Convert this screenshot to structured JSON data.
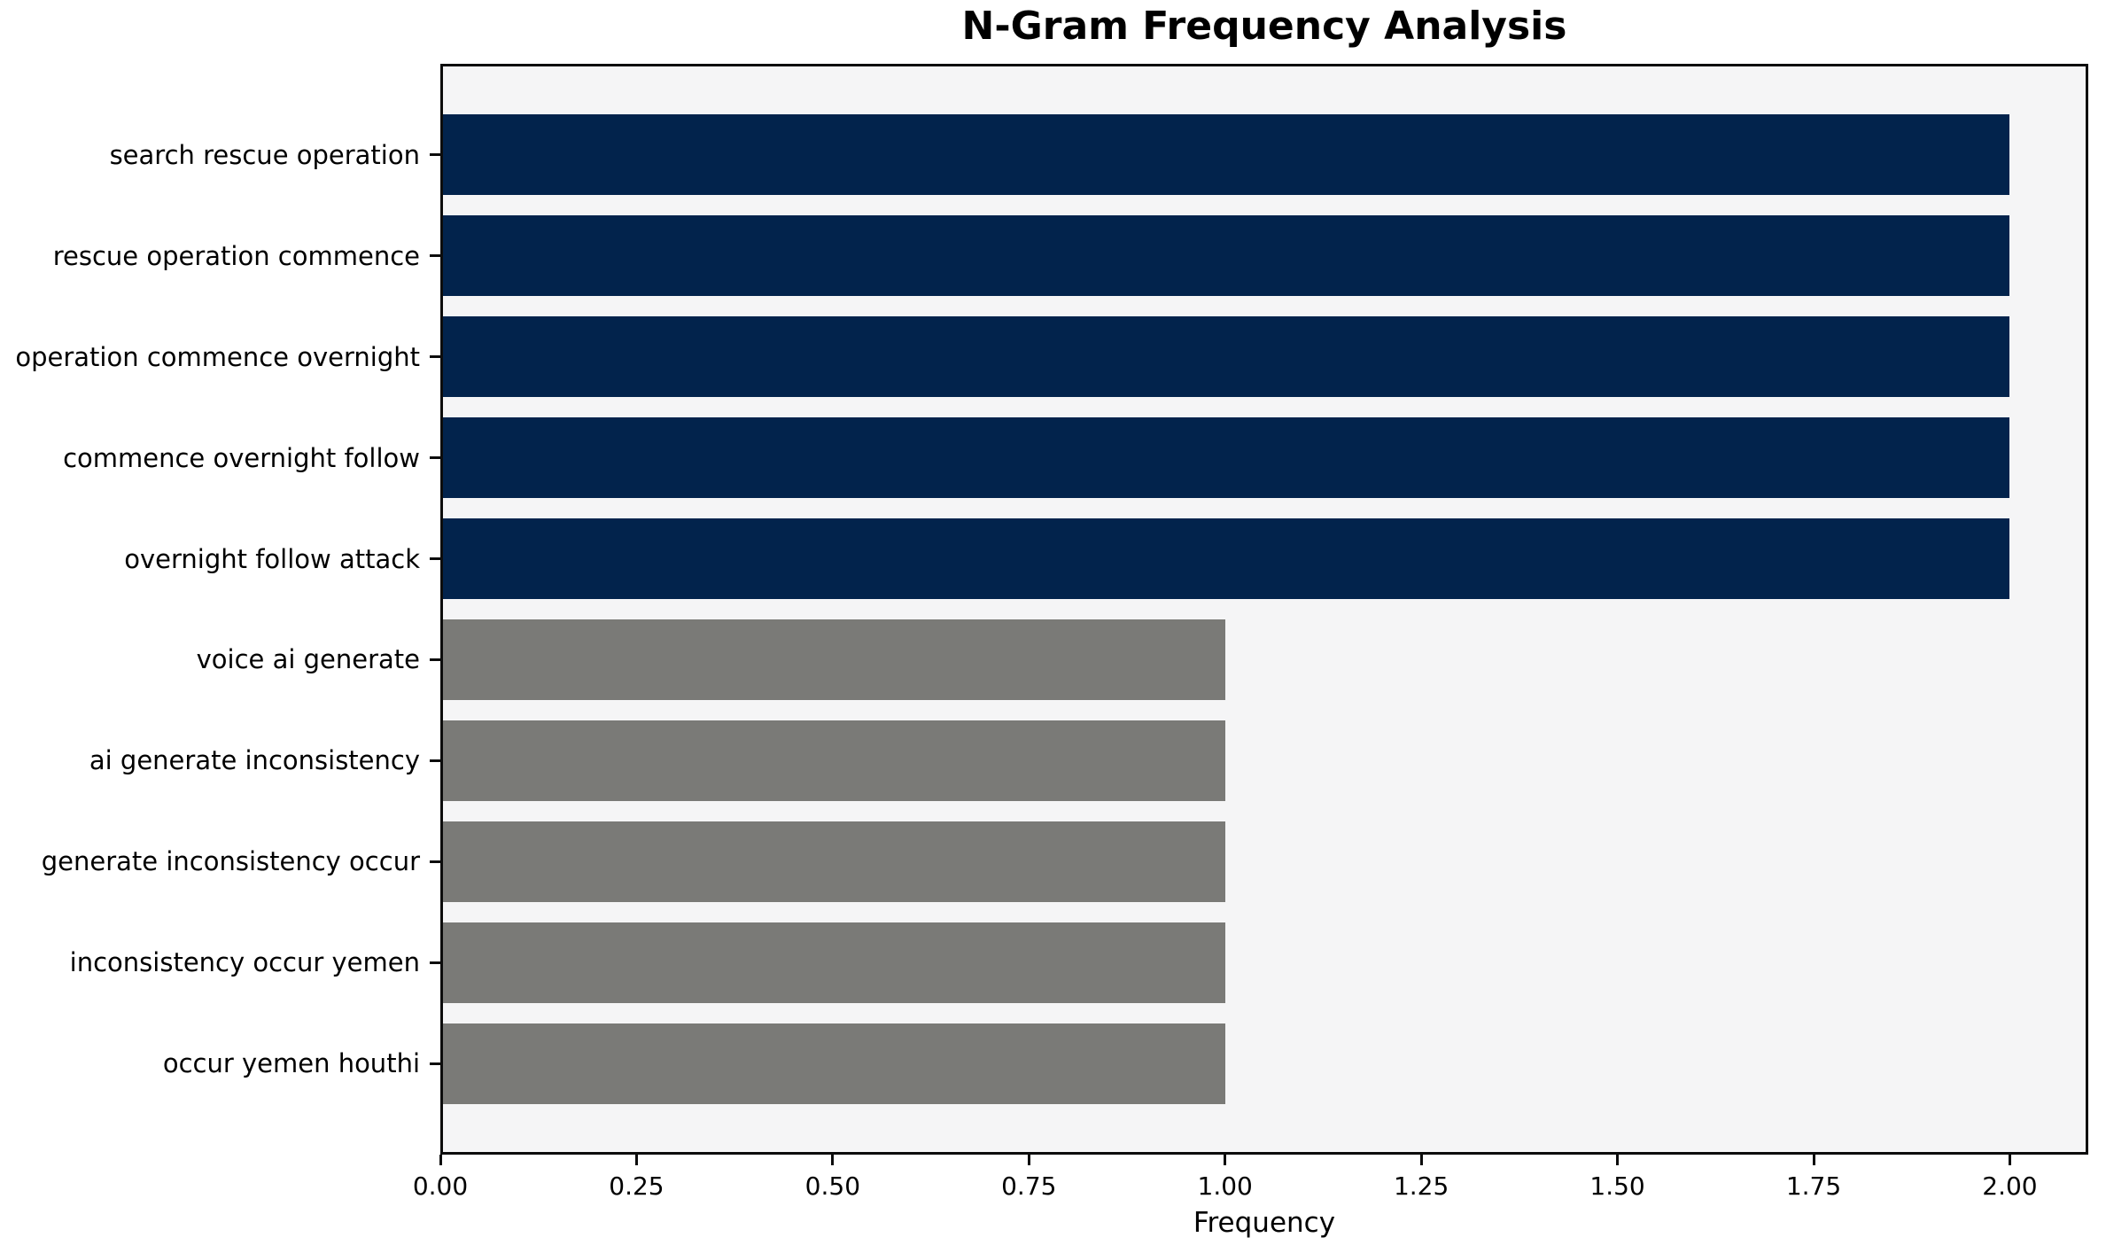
{
  "chart_data": {
    "type": "bar",
    "orientation": "horizontal",
    "title": "N-Gram Frequency Analysis",
    "xlabel": "Frequency",
    "ylabel": "",
    "categories": [
      "search rescue operation",
      "rescue operation commence",
      "operation commence overnight",
      "commence overnight follow",
      "overnight follow attack",
      "voice ai generate",
      "ai generate inconsistency",
      "generate inconsistency occur",
      "inconsistency occur yemen",
      "occur yemen houthi"
    ],
    "values": [
      2,
      2,
      2,
      2,
      2,
      1,
      1,
      1,
      1,
      1
    ],
    "bar_colors": [
      "#02234c",
      "#02234c",
      "#02234c",
      "#02234c",
      "#02234c",
      "#7a7a77",
      "#7a7a77",
      "#7a7a77",
      "#7a7a77",
      "#7a7a77"
    ],
    "xlim": [
      0,
      2.1
    ],
    "x_ticks": [
      {
        "value": 0.0,
        "label": "0.00"
      },
      {
        "value": 0.25,
        "label": "0.25"
      },
      {
        "value": 0.5,
        "label": "0.50"
      },
      {
        "value": 0.75,
        "label": "0.75"
      },
      {
        "value": 1.0,
        "label": "1.00"
      },
      {
        "value": 1.25,
        "label": "1.25"
      },
      {
        "value": 1.5,
        "label": "1.50"
      },
      {
        "value": 1.75,
        "label": "1.75"
      },
      {
        "value": 2.0,
        "label": "2.00"
      }
    ],
    "grid": false,
    "legend": null,
    "colors": {
      "bar_frequent": "#02234c",
      "bar_infrequent": "#7a7a77",
      "plot_background": "#f5f5f6",
      "figure_background": "#ffffff",
      "axis_line": "#0c0c0c",
      "text": "#000000"
    }
  }
}
